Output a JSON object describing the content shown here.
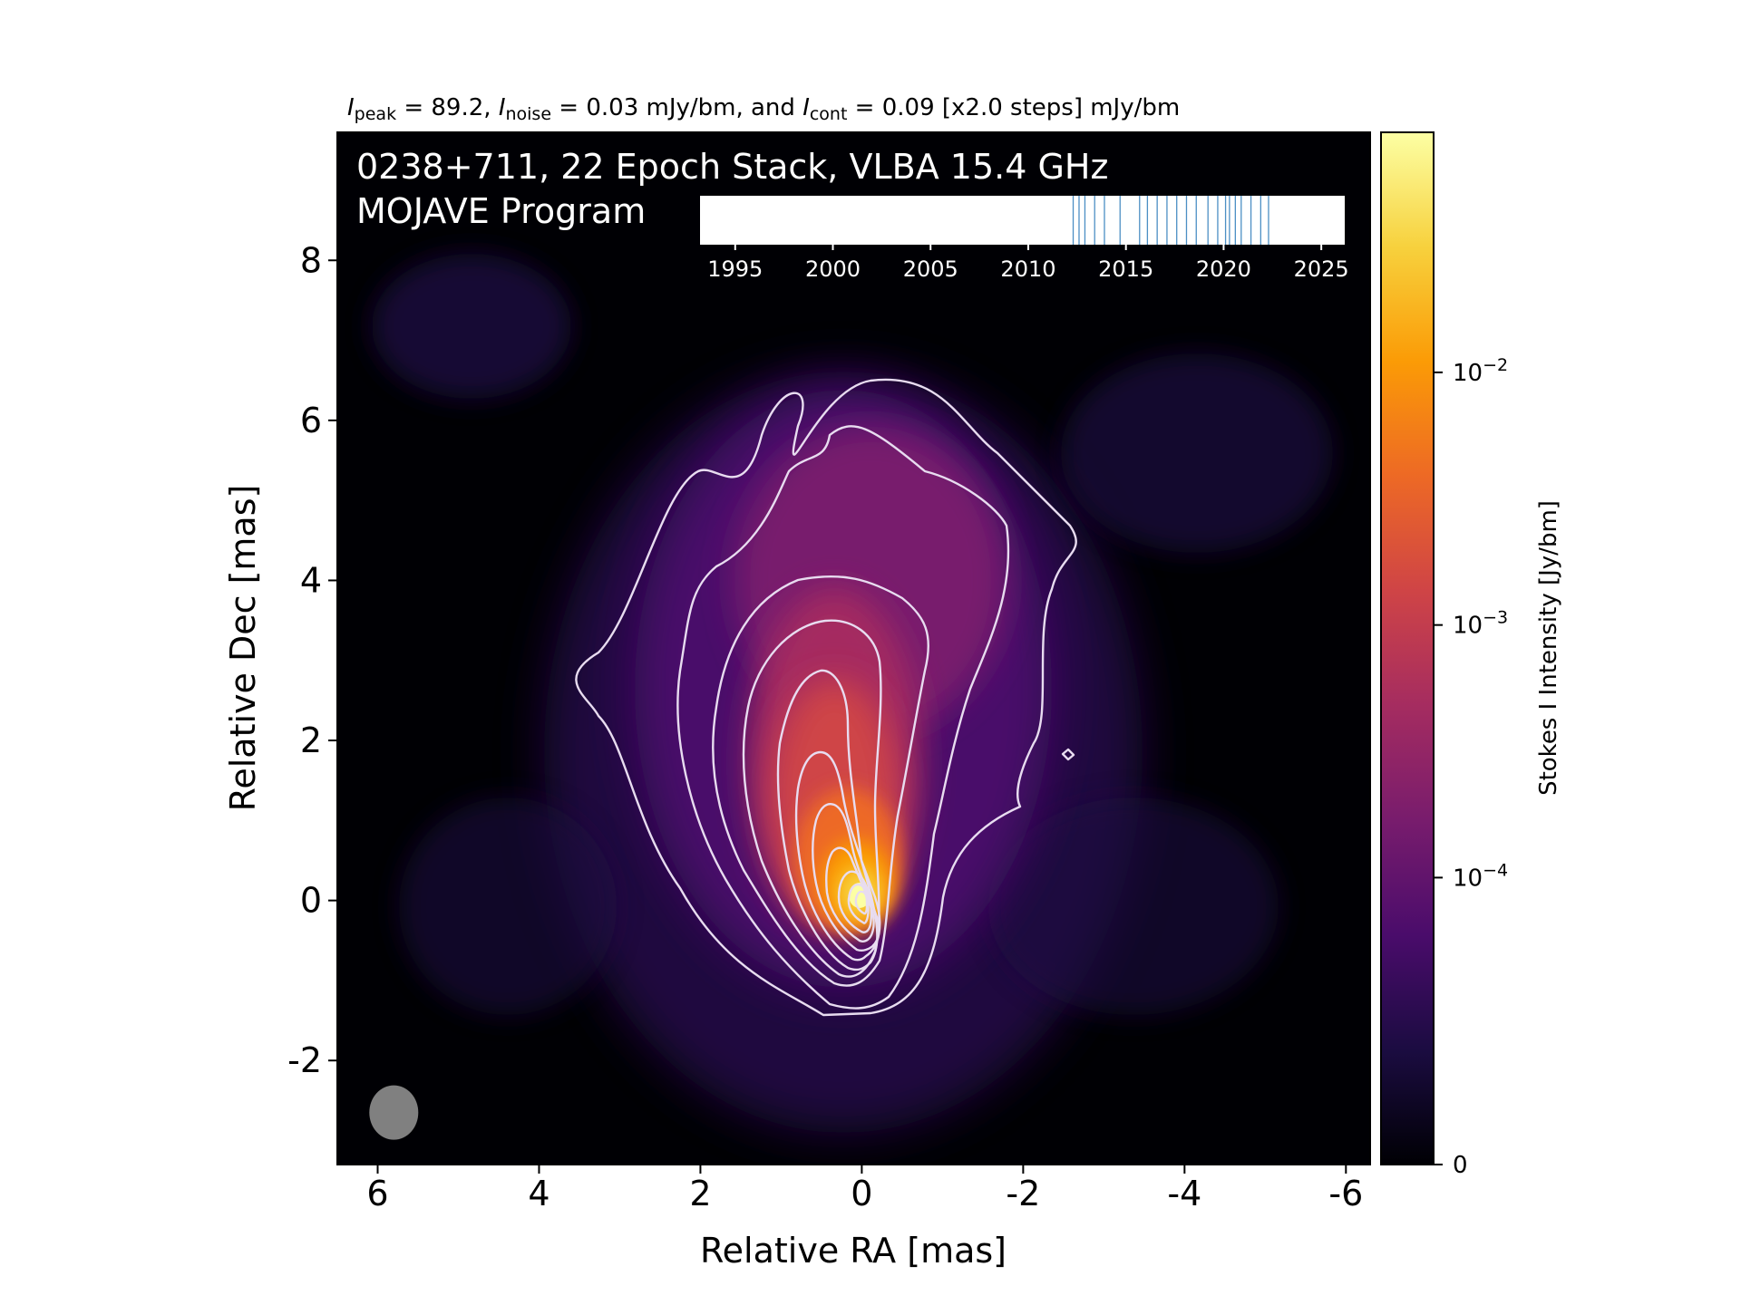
{
  "chart_data": {
    "type": "heatmap",
    "title": {
      "parts": [
        {
          "text": "I",
          "style": "italic"
        },
        {
          "text": "peak",
          "style": "sub"
        },
        {
          "text": " = 89.2, ",
          "style": "normal"
        },
        {
          "text": "I",
          "style": "italic"
        },
        {
          "text": "noise",
          "style": "sub"
        },
        {
          "text": " = 0.03 mJy/bm, and ",
          "style": "normal"
        },
        {
          "text": "I",
          "style": "italic"
        },
        {
          "text": "cont",
          "style": "sub"
        },
        {
          "text": " = 0.09 [x2.0 steps] mJy/bm",
          "style": "normal"
        }
      ]
    },
    "annotation_line1": "0238+711, 22 Epoch Stack, VLBA 15.4 GHz",
    "annotation_line2": "MOJAVE Program",
    "xlabel": "Relative RA [mas]",
    "ylabel": "Relative Dec [mas]",
    "xlim": [
      6.5,
      -6.3
    ],
    "ylim": [
      -3.3,
      9.6
    ],
    "x_ticks": [
      6,
      4,
      2,
      0,
      -2,
      -4,
      -6
    ],
    "x_tick_labels": [
      "6",
      "4",
      "2",
      "0",
      "-2",
      "-4",
      "-6"
    ],
    "y_ticks": [
      8,
      6,
      4,
      2,
      0,
      -2
    ],
    "y_tick_labels": [
      "8",
      "6",
      "4",
      "2",
      "0",
      "-2"
    ],
    "colorbar": {
      "label": "Stokes I Intensity [Jy/bm]",
      "colormap": "inferno",
      "scale": "log",
      "ticks": [
        {
          "value": 0.0001,
          "base": "10",
          "exp": "−4"
        },
        {
          "value": 0.001,
          "base": "10",
          "exp": "−3"
        },
        {
          "value": 0.01,
          "base": "10",
          "exp": "−2"
        },
        {
          "value": 0,
          "label": "0"
        }
      ],
      "colors": [
        "#000004",
        "#1b0c41",
        "#4a0c6b",
        "#781c6d",
        "#a52c60",
        "#cf4446",
        "#ed6925",
        "#fb9b06",
        "#f7d13d",
        "#fcffa4"
      ]
    },
    "intensity": {
      "peak": 89.2,
      "noise": 0.03,
      "contour_base": 0.09,
      "contour_step": 2.0,
      "unit": "mJy/bm"
    },
    "contour_color": "#e8dcf0",
    "beam": {
      "x": 5.8,
      "y": -2.65,
      "color": "#808080"
    },
    "epochs": {
      "axis_ticks": [
        1995,
        2000,
        2005,
        2010,
        2015,
        2020,
        2025
      ],
      "axis_range": [
        1993.2,
        2026.2
      ],
      "dates": [
        2012.3,
        2012.6,
        2012.9,
        2013.4,
        2013.9,
        2014.7,
        2015.7,
        2016.1,
        2016.6,
        2017.1,
        2017.6,
        2018.1,
        2018.6,
        2019.2,
        2019.7,
        2020.1,
        2020.3,
        2020.6,
        2020.9,
        2021.4,
        2021.9,
        2022.3
      ],
      "line_color": "#4c8fc4"
    }
  }
}
